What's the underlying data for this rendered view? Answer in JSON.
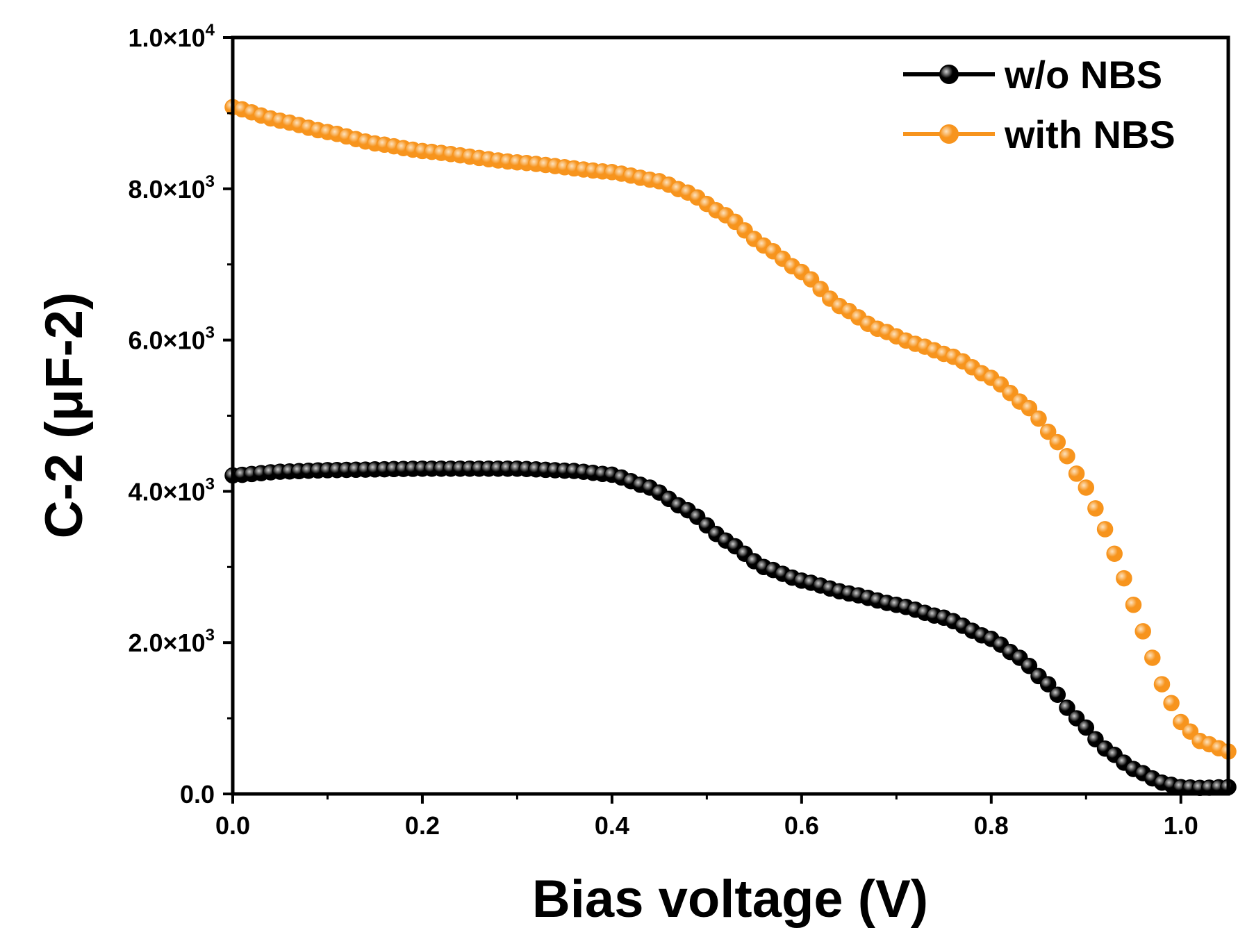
{
  "chart_data": {
    "type": "scatter",
    "xlabel": "Bias voltage (V)",
    "ylabel": "C-2 (μF-2)",
    "xlim": [
      0.0,
      1.05
    ],
    "ylim": [
      0,
      10000
    ],
    "xticks": [
      {
        "value": 0.0,
        "label": "0.0"
      },
      {
        "value": 0.2,
        "label": "0.2"
      },
      {
        "value": 0.4,
        "label": "0.4"
      },
      {
        "value": 0.6,
        "label": "0.6"
      },
      {
        "value": 0.8,
        "label": "0.8"
      },
      {
        "value": 1.0,
        "label": "1.0"
      }
    ],
    "yticks": [
      {
        "value": 0,
        "label": "0.0",
        "exp": ""
      },
      {
        "value": 2000,
        "label": "2.0×10",
        "exp": "3"
      },
      {
        "value": 4000,
        "label": "4.0×10",
        "exp": "3"
      },
      {
        "value": 6000,
        "label": "6.0×10",
        "exp": "3"
      },
      {
        "value": 8000,
        "label": "8.0×10",
        "exp": "3"
      },
      {
        "value": 10000,
        "label": "1.0×10",
        "exp": "4"
      }
    ],
    "legend_position": "top-right",
    "x_start": 0.0,
    "x_step": 0.01,
    "series": [
      {
        "name": "w/o NBS",
        "color": "#000000",
        "highlight": "#cfcfcf",
        "anchors": [
          [
            0.0,
            4210
          ],
          [
            0.05,
            4260
          ],
          [
            0.1,
            4280
          ],
          [
            0.2,
            4300
          ],
          [
            0.3,
            4300
          ],
          [
            0.36,
            4270
          ],
          [
            0.4,
            4220
          ],
          [
            0.44,
            4050
          ],
          [
            0.48,
            3750
          ],
          [
            0.52,
            3350
          ],
          [
            0.56,
            3000
          ],
          [
            0.6,
            2820
          ],
          [
            0.65,
            2650
          ],
          [
            0.7,
            2500
          ],
          [
            0.75,
            2330
          ],
          [
            0.8,
            2050
          ],
          [
            0.83,
            1800
          ],
          [
            0.86,
            1450
          ],
          [
            0.89,
            1000
          ],
          [
            0.92,
            600
          ],
          [
            0.95,
            330
          ],
          [
            0.98,
            150
          ],
          [
            1.0,
            90
          ],
          [
            1.02,
            80
          ],
          [
            1.05,
            90
          ]
        ]
      },
      {
        "name": "with NBS",
        "color": "#f7941d",
        "highlight": "#fde3c0",
        "anchors": [
          [
            0.0,
            9080
          ],
          [
            0.05,
            8900
          ],
          [
            0.1,
            8750
          ],
          [
            0.15,
            8600
          ],
          [
            0.2,
            8500
          ],
          [
            0.3,
            8350
          ],
          [
            0.4,
            8220
          ],
          [
            0.45,
            8100
          ],
          [
            0.48,
            7950
          ],
          [
            0.52,
            7650
          ],
          [
            0.56,
            7250
          ],
          [
            0.6,
            6900
          ],
          [
            0.64,
            6450
          ],
          [
            0.68,
            6150
          ],
          [
            0.72,
            5950
          ],
          [
            0.76,
            5780
          ],
          [
            0.8,
            5500
          ],
          [
            0.84,
            5100
          ],
          [
            0.87,
            4650
          ],
          [
            0.9,
            4050
          ],
          [
            0.92,
            3500
          ],
          [
            0.94,
            2850
          ],
          [
            0.96,
            2150
          ],
          [
            0.98,
            1450
          ],
          [
            1.0,
            950
          ],
          [
            1.02,
            700
          ],
          [
            1.05,
            560
          ]
        ]
      }
    ]
  }
}
